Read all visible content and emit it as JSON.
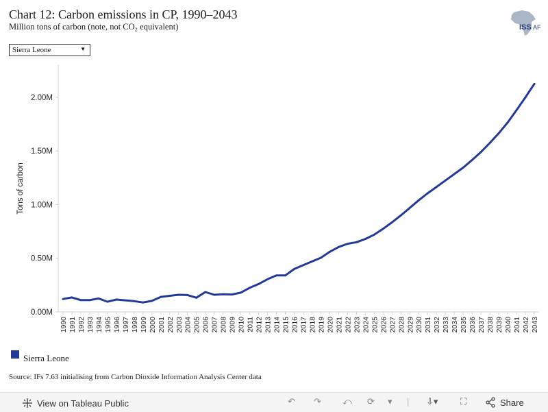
{
  "header": {
    "title": "Chart 12: Carbon emissions in CP, 1990–2043",
    "subtitle": "Million tons of carbon (note, not CO₂ equivalent)"
  },
  "logo": {
    "text": "ISS",
    "suffix": "AF",
    "icon": "africa-map-icon"
  },
  "filter": {
    "selected": "Sierra Leone"
  },
  "legend": {
    "label": "Sierra Leone",
    "color": "#23399a"
  },
  "source": "Source: IFs 7.63 initialising from Carbon Dioxide Information Analysis Center data",
  "footer": {
    "view_label": "View on Tableau Public",
    "share_label": "Share"
  },
  "chart_data": {
    "type": "line",
    "ylabel": "Tons of carbon",
    "xlabel": "",
    "ylim": [
      0,
      2300000
    ],
    "yticks": [
      0,
      500000,
      1000000,
      1500000,
      2000000
    ],
    "ytick_labels": [
      "0.00M",
      "0.50M",
      "1.00M",
      "1.50M",
      "2.00M"
    ],
    "grid": false,
    "x": [
      1990,
      1991,
      1992,
      1993,
      1994,
      1995,
      1996,
      1997,
      1998,
      1999,
      2000,
      2001,
      2002,
      2003,
      2004,
      2005,
      2006,
      2007,
      2008,
      2009,
      2010,
      2011,
      2012,
      2013,
      2014,
      2015,
      2016,
      2017,
      2018,
      2019,
      2020,
      2021,
      2022,
      2023,
      2024,
      2025,
      2026,
      2027,
      2028,
      2029,
      2030,
      2031,
      2032,
      2033,
      2034,
      2035,
      2036,
      2037,
      2038,
      2039,
      2040,
      2041,
      2042,
      2043
    ],
    "series": [
      {
        "name": "Sierra Leone",
        "color": "#23399a",
        "values": [
          120000,
          135000,
          110000,
          110000,
          125000,
          95000,
          115000,
          108000,
          100000,
          88000,
          103000,
          140000,
          150000,
          160000,
          157000,
          132000,
          185000,
          160000,
          165000,
          162000,
          180000,
          225000,
          260000,
          305000,
          340000,
          340000,
          400000,
          435000,
          470000,
          505000,
          560000,
          605000,
          635000,
          650000,
          680000,
          720000,
          775000,
          835000,
          900000,
          970000,
          1040000,
          1105000,
          1165000,
          1225000,
          1285000,
          1345000,
          1415000,
          1490000,
          1575000,
          1665000,
          1765000,
          1880000,
          2000000,
          2125000
        ]
      }
    ]
  }
}
